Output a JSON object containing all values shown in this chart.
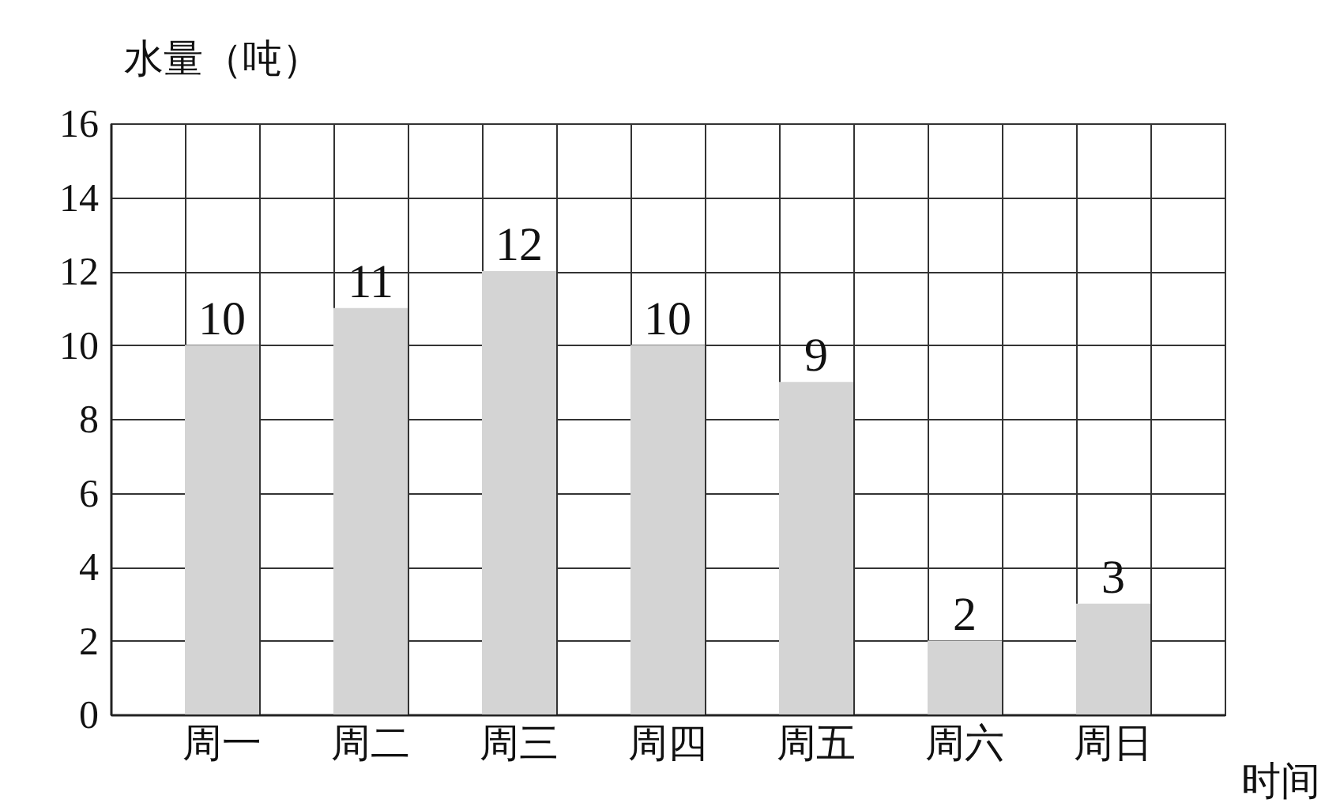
{
  "chart_data": {
    "type": "bar",
    "xlabel": "时间",
    "ylabel": "水量（吨）",
    "categories": [
      "周一",
      "周二",
      "周三",
      "周四",
      "周五",
      "周六",
      "周日"
    ],
    "values": [
      10,
      11,
      12,
      10,
      9,
      2,
      3
    ],
    "color": "#d4d4d4",
    "ylim": [
      0,
      16
    ],
    "yticks": [
      0,
      2,
      4,
      6,
      8,
      10,
      12,
      14,
      16
    ],
    "grid": true,
    "data_labels": true
  }
}
